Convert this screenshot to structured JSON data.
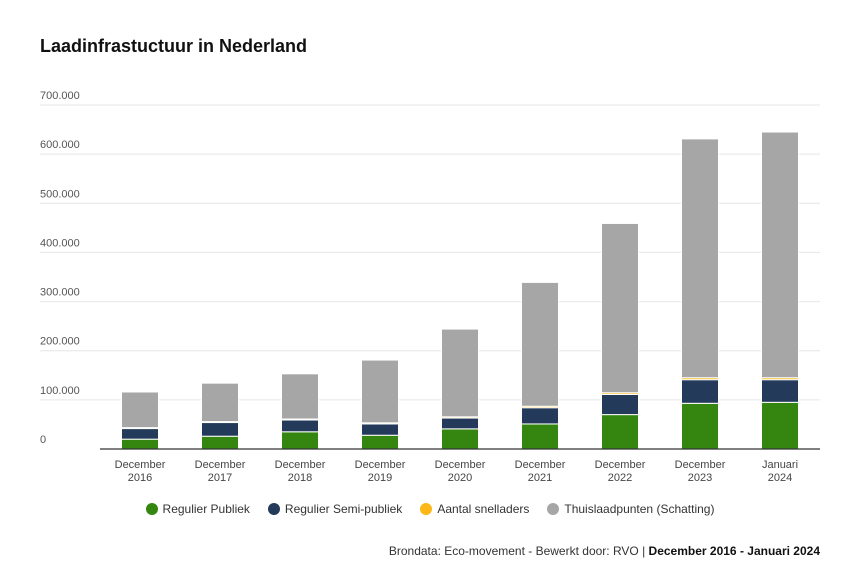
{
  "chart_data": {
    "type": "bar",
    "stacked": true,
    "title": "Laadinfrastuctuur in Nederland",
    "categories": [
      "December 2016",
      "December 2017",
      "December 2018",
      "December 2019",
      "December 2020",
      "December 2021",
      "December 2022",
      "December 2023",
      "Januari 2024"
    ],
    "series": [
      {
        "name": "Regulier Publiek",
        "color": "#358611",
        "values": [
          20000,
          26000,
          35000,
          28000,
          41000,
          51000,
          70000,
          93000,
          95000
        ]
      },
      {
        "name": "Regulier Semi-publiek",
        "color": "#233a5a",
        "values": [
          22000,
          28000,
          24000,
          23000,
          22000,
          33000,
          41000,
          48000,
          46000
        ]
      },
      {
        "name": "Aantal snelladers",
        "color": "#fbb818",
        "values": [
          1500,
          1800,
          2000,
          2300,
          2500,
          3000,
          3500,
          4000,
          4000
        ]
      },
      {
        "name": "Thuislaadpunten (Schatting)",
        "color": "#a6a6a6",
        "values": [
          72500,
          78200,
          92000,
          127700,
          178500,
          252000,
          344500,
          486000,
          500000
        ]
      }
    ],
    "yticks": [
      "0",
      "100.000",
      "200.000",
      "300.000",
      "400.000",
      "500.000",
      "600.000",
      "700.000"
    ],
    "ylim": [
      0,
      700000
    ],
    "grid": true,
    "legend_position": "bottom"
  },
  "footer": {
    "source": "Brondata: Eco-movement - Bewerkt door: RVO",
    "period": "December 2016 - Januari 2024"
  }
}
